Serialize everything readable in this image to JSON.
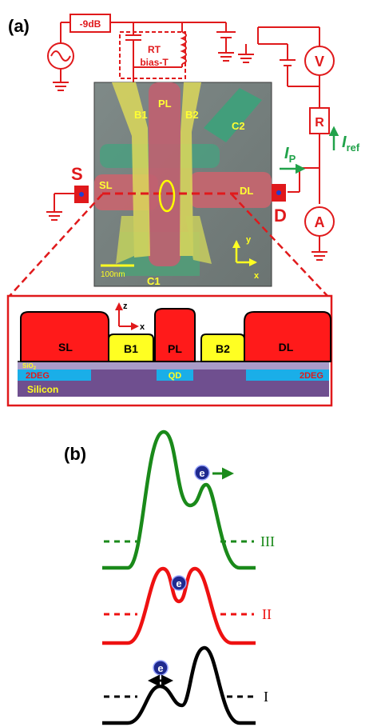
{
  "panel_a": {
    "label": "(a)",
    "attenuator": "-9dB",
    "bias_tee_line1": "RT",
    "bias_tee_line2": "bias-T",
    "source_label": "S",
    "drain_label": "D",
    "voltmeter": "V",
    "ammeter": "A",
    "resistor": "R",
    "ip_main": "I",
    "ip_sub": "P",
    "iref_main": "I",
    "iref_sub": "ref",
    "sem_labels": {
      "B1": "B1",
      "PL": "PL",
      "B2": "B2",
      "C2": "C2",
      "SL": "SL",
      "DL": "DL",
      "C1": "C1"
    },
    "scale_bar": "100nm",
    "axis_y": "y",
    "axis_x": "x"
  },
  "cross_section": {
    "axis_z": "z",
    "axis_x": "x",
    "SL": "SL",
    "B1": "B1",
    "PL": "PL",
    "B2": "B2",
    "DL": "DL",
    "sio2_main": "SiO",
    "sio2_sub": "2",
    "twodeg_left": "2DEG",
    "twodeg_right": "2DEG",
    "qd": "QD",
    "silicon": "Silicon"
  },
  "panel_b": {
    "label": "(b)",
    "electron": "e",
    "levels": [
      "III",
      "II",
      "I"
    ],
    "colors": {
      "III": "#1a8a1a",
      "II": "#ee1111",
      "I": "#000000"
    }
  },
  "colors": {
    "red": "#e0191b",
    "gate_red": "#ff1a1a",
    "gate_yellow": "#ffff22",
    "oxide": "#a99bc8",
    "twodeg": "#1aaee8",
    "silicon": "#6f4f8f",
    "green_arrow": "#21a24a",
    "electron_fill": "#1f2a8f"
  }
}
